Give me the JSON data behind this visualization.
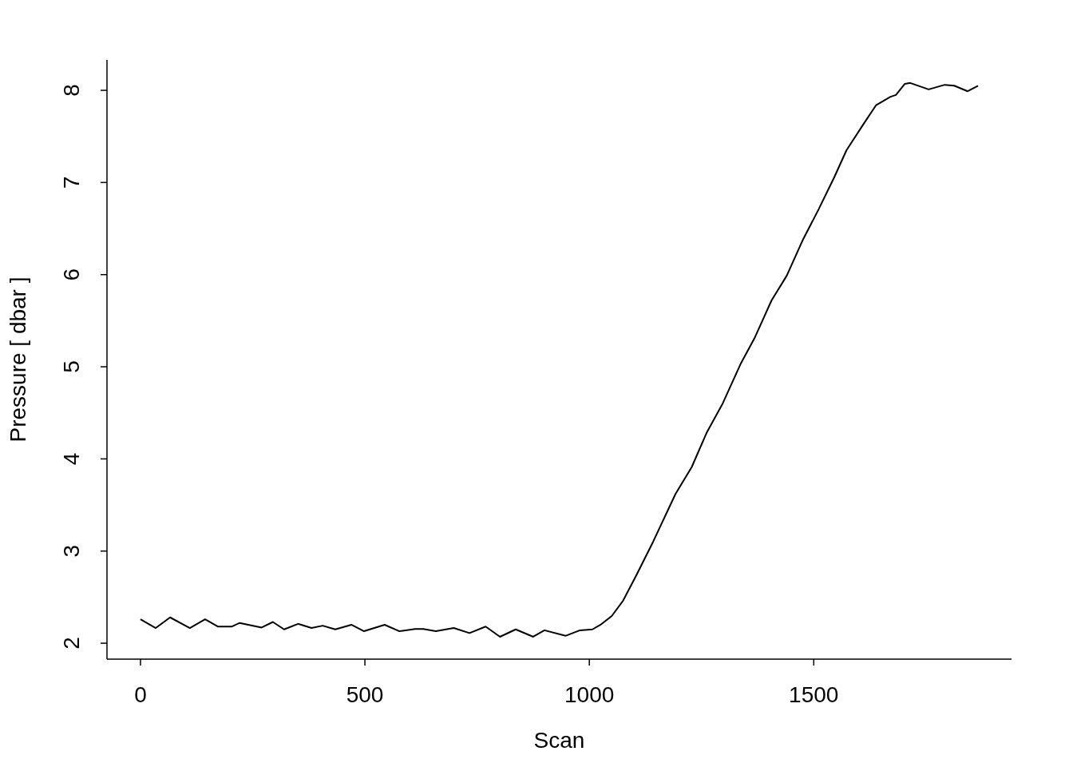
{
  "chart_data": {
    "type": "line",
    "xlabel": "Scan",
    "ylabel": "Pressure [ dbar ]",
    "x": [
      0,
      34,
      66,
      110,
      144,
      173,
      203,
      221,
      270,
      295,
      320,
      351,
      381,
      406,
      434,
      470,
      498,
      544,
      577,
      612,
      630,
      658,
      698,
      733,
      769,
      801,
      836,
      875,
      900,
      947,
      979,
      1007,
      1025,
      1050,
      1075,
      1105,
      1142,
      1192,
      1228,
      1262,
      1297,
      1338,
      1368,
      1406,
      1440,
      1475,
      1511,
      1546,
      1573,
      1609,
      1639,
      1671,
      1683,
      1703,
      1715,
      1756,
      1792,
      1813,
      1843,
      1866
    ],
    "series": [
      {
        "color": "#000000",
        "values": [
          2.26,
          2.165,
          2.28,
          2.165,
          2.26,
          2.18,
          2.18,
          2.22,
          2.17,
          2.23,
          2.15,
          2.21,
          2.165,
          2.19,
          2.15,
          2.2,
          2.13,
          2.2,
          2.13,
          2.155,
          2.155,
          2.13,
          2.165,
          2.11,
          2.18,
          2.07,
          2.15,
          2.07,
          2.14,
          2.08,
          2.14,
          2.15,
          2.2,
          2.295,
          2.46,
          2.74,
          3.1,
          3.62,
          3.91,
          4.29,
          4.6,
          5.04,
          5.31,
          5.72,
          5.99,
          6.37,
          6.71,
          7.06,
          7.35,
          7.62,
          7.84,
          7.93,
          7.95,
          8.07,
          8.08,
          8.01,
          8.06,
          8.05,
          7.99,
          8.05
        ]
      }
    ],
    "xlim": [
      -74.64,
      1940.64
    ],
    "ylim": [
      1.827,
      8.33
    ],
    "xticks": [
      0,
      500,
      1000,
      1500
    ],
    "yticks": [
      2,
      3,
      4,
      5,
      6,
      7,
      8
    ],
    "grid": false,
    "legend": false,
    "marker": "none",
    "line_style": "solid"
  }
}
